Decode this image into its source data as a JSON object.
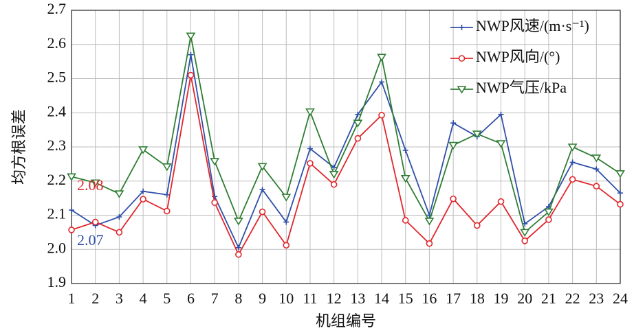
{
  "chart_data": {
    "type": "line",
    "x_label": "机组编号",
    "y_label": "均方根误差",
    "x": [
      1,
      2,
      3,
      4,
      5,
      6,
      7,
      8,
      9,
      10,
      11,
      12,
      13,
      14,
      15,
      16,
      17,
      18,
      19,
      20,
      21,
      22,
      23,
      24
    ],
    "xlim": [
      1,
      24
    ],
    "xticks": [
      1,
      2,
      3,
      4,
      5,
      6,
      7,
      8,
      9,
      10,
      11,
      12,
      13,
      14,
      15,
      16,
      17,
      18,
      19,
      20,
      21,
      22,
      23,
      24
    ],
    "ylim": [
      1.9,
      2.7
    ],
    "yticks": [
      1.9,
      {
        "value": 2.0,
        "label": "2.0"
      },
      2.1,
      2.2,
      2.3,
      2.4,
      2.5,
      2.6,
      2.7
    ],
    "grid": true,
    "legend": "upper right",
    "series": [
      {
        "name": "NWP风速/(m·s⁻¹)",
        "color": "#2f4fa8",
        "marker": "plus",
        "values": [
          2.115,
          2.07,
          2.095,
          2.17,
          2.16,
          2.57,
          2.155,
          2.005,
          2.175,
          2.08,
          2.295,
          2.24,
          2.395,
          2.49,
          2.29,
          2.1,
          2.37,
          2.33,
          2.395,
          2.075,
          2.125,
          2.255,
          2.235,
          2.165
        ]
      },
      {
        "name": "NWP风向/(°)",
        "color": "#e0262b",
        "marker": "circle",
        "values": [
          2.057,
          2.08,
          2.05,
          2.147,
          2.112,
          2.51,
          2.137,
          1.985,
          2.11,
          2.012,
          2.252,
          2.19,
          2.325,
          2.393,
          2.085,
          2.017,
          2.148,
          2.07,
          2.14,
          2.025,
          2.087,
          2.205,
          2.185,
          2.132
        ]
      },
      {
        "name": "NWP气压/kPa",
        "color": "#2e7d32",
        "marker": "triangle-down",
        "values": [
          2.213,
          2.195,
          2.163,
          2.292,
          2.242,
          2.625,
          2.258,
          2.083,
          2.243,
          2.153,
          2.403,
          2.22,
          2.37,
          2.563,
          2.208,
          2.083,
          2.305,
          2.338,
          2.31,
          2.05,
          2.11,
          2.3,
          2.268,
          2.222
        ]
      }
    ],
    "annotations": [
      {
        "text": "2.08",
        "x": 1,
        "y": 2.08,
        "color": "#e0262b"
      },
      {
        "text": "2.07",
        "x": 1,
        "y": 2.07,
        "color": "#2f4fa8"
      }
    ]
  }
}
